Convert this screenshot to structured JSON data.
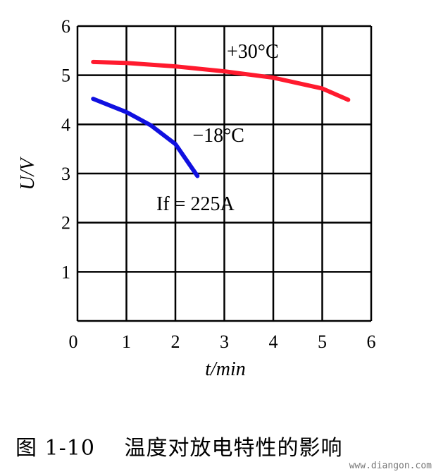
{
  "chart_data": {
    "type": "line",
    "xlabel": "t/min",
    "ylabel": "U/V",
    "xlim": [
      0,
      6
    ],
    "ylim": [
      0,
      6
    ],
    "xticks": [
      "0",
      "1",
      "2",
      "3",
      "4",
      "5",
      "6"
    ],
    "yticks": [
      "1",
      "2",
      "3",
      "4",
      "5",
      "6"
    ],
    "grid": true,
    "series": [
      {
        "name": "+30°C",
        "color": "#ff1a2e",
        "x": [
          0.32,
          1,
          2,
          3,
          4,
          5,
          5.53
        ],
        "y": [
          5.27,
          5.25,
          5.18,
          5.08,
          4.95,
          4.73,
          4.5
        ]
      },
      {
        "name": "−18°C",
        "color": "#1010e0",
        "x": [
          0.32,
          1,
          1.5,
          2,
          2.45
        ],
        "y": [
          4.52,
          4.25,
          3.98,
          3.6,
          2.95
        ]
      }
    ],
    "annotations": [
      {
        "text": "If = 225A",
        "x": 1.9,
        "y": 2.4
      }
    ]
  },
  "caption": "图 1-10　 温度对放电特性的影响",
  "watermark": "www.diangon.com"
}
